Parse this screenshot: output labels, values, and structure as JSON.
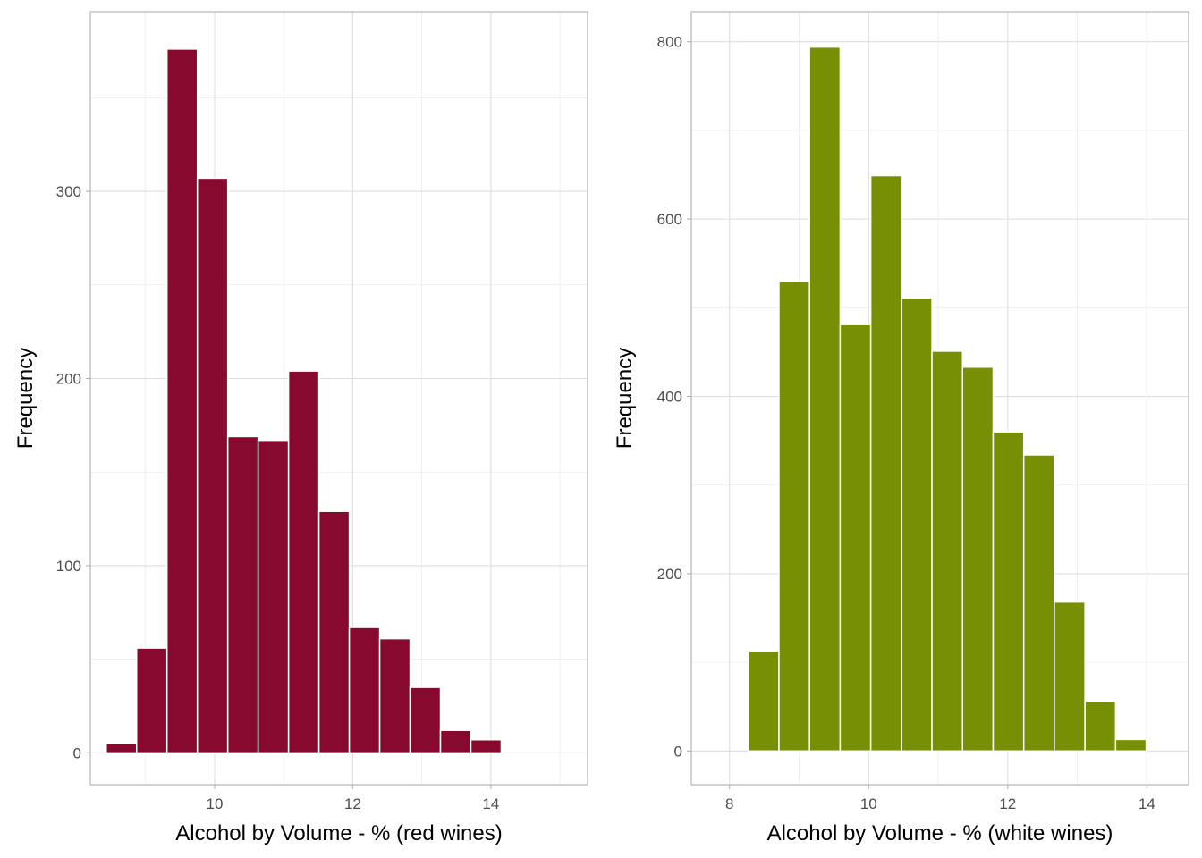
{
  "chart_data": [
    {
      "type": "bar",
      "id": "red",
      "xlabel": "Alcohol by Volume - % (red wines)",
      "ylabel": "Frequency",
      "color": "#870A2E",
      "xlim": [
        8.2,
        15.4
      ],
      "ylim": [
        -17,
        396
      ],
      "xticks": [
        10,
        12,
        14
      ],
      "xminor": [
        9,
        11,
        13,
        15
      ],
      "yticks": [
        0,
        100,
        200,
        300
      ],
      "yminor": [
        50,
        150,
        250,
        350
      ],
      "bin_width": 0.44,
      "bins": [
        {
          "x0": 8.43,
          "x1": 8.87,
          "count": 5
        },
        {
          "x0": 8.87,
          "x1": 9.31,
          "count": 56
        },
        {
          "x0": 9.31,
          "x1": 9.75,
          "count": 376
        },
        {
          "x0": 9.75,
          "x1": 10.19,
          "count": 307
        },
        {
          "x0": 10.19,
          "x1": 10.63,
          "count": 169
        },
        {
          "x0": 10.63,
          "x1": 11.07,
          "count": 167
        },
        {
          "x0": 11.07,
          "x1": 11.51,
          "count": 204
        },
        {
          "x0": 11.51,
          "x1": 11.95,
          "count": 129
        },
        {
          "x0": 11.95,
          "x1": 12.39,
          "count": 67
        },
        {
          "x0": 12.39,
          "x1": 12.83,
          "count": 61
        },
        {
          "x0": 12.83,
          "x1": 13.27,
          "count": 35
        },
        {
          "x0": 13.27,
          "x1": 13.71,
          "count": 12
        },
        {
          "x0": 13.71,
          "x1": 14.15,
          "count": 7
        },
        {
          "x0": 14.15,
          "x1": 14.59,
          "count": 0
        },
        {
          "x0": 14.59,
          "x1": 15.03,
          "count": 0
        }
      ]
    },
    {
      "type": "bar",
      "id": "white",
      "xlabel": "Alcohol by Volume - % (white wines)",
      "ylabel": "Frequency",
      "color": "#768F05",
      "xlim": [
        7.45,
        14.6
      ],
      "ylim": [
        -38,
        834
      ],
      "xticks": [
        8,
        10,
        12,
        14
      ],
      "xminor": [
        9,
        11,
        13
      ],
      "yticks": [
        0,
        200,
        400,
        600,
        800
      ],
      "yminor": [
        100,
        300,
        500,
        700
      ],
      "bin_width": 0.44,
      "bins": [
        {
          "x0": 7.83,
          "x1": 8.27,
          "count": 0
        },
        {
          "x0": 8.27,
          "x1": 8.71,
          "count": 113
        },
        {
          "x0": 8.71,
          "x1": 9.15,
          "count": 530
        },
        {
          "x0": 9.15,
          "x1": 9.59,
          "count": 794
        },
        {
          "x0": 9.59,
          "x1": 10.03,
          "count": 481
        },
        {
          "x0": 10.03,
          "x1": 10.47,
          "count": 649
        },
        {
          "x0": 10.47,
          "x1": 10.91,
          "count": 511
        },
        {
          "x0": 10.91,
          "x1": 11.35,
          "count": 451
        },
        {
          "x0": 11.35,
          "x1": 11.79,
          "count": 433
        },
        {
          "x0": 11.79,
          "x1": 12.23,
          "count": 360
        },
        {
          "x0": 12.23,
          "x1": 12.67,
          "count": 334
        },
        {
          "x0": 12.67,
          "x1": 13.11,
          "count": 168
        },
        {
          "x0": 13.11,
          "x1": 13.55,
          "count": 56
        },
        {
          "x0": 13.55,
          "x1": 13.99,
          "count": 13
        }
      ]
    }
  ]
}
